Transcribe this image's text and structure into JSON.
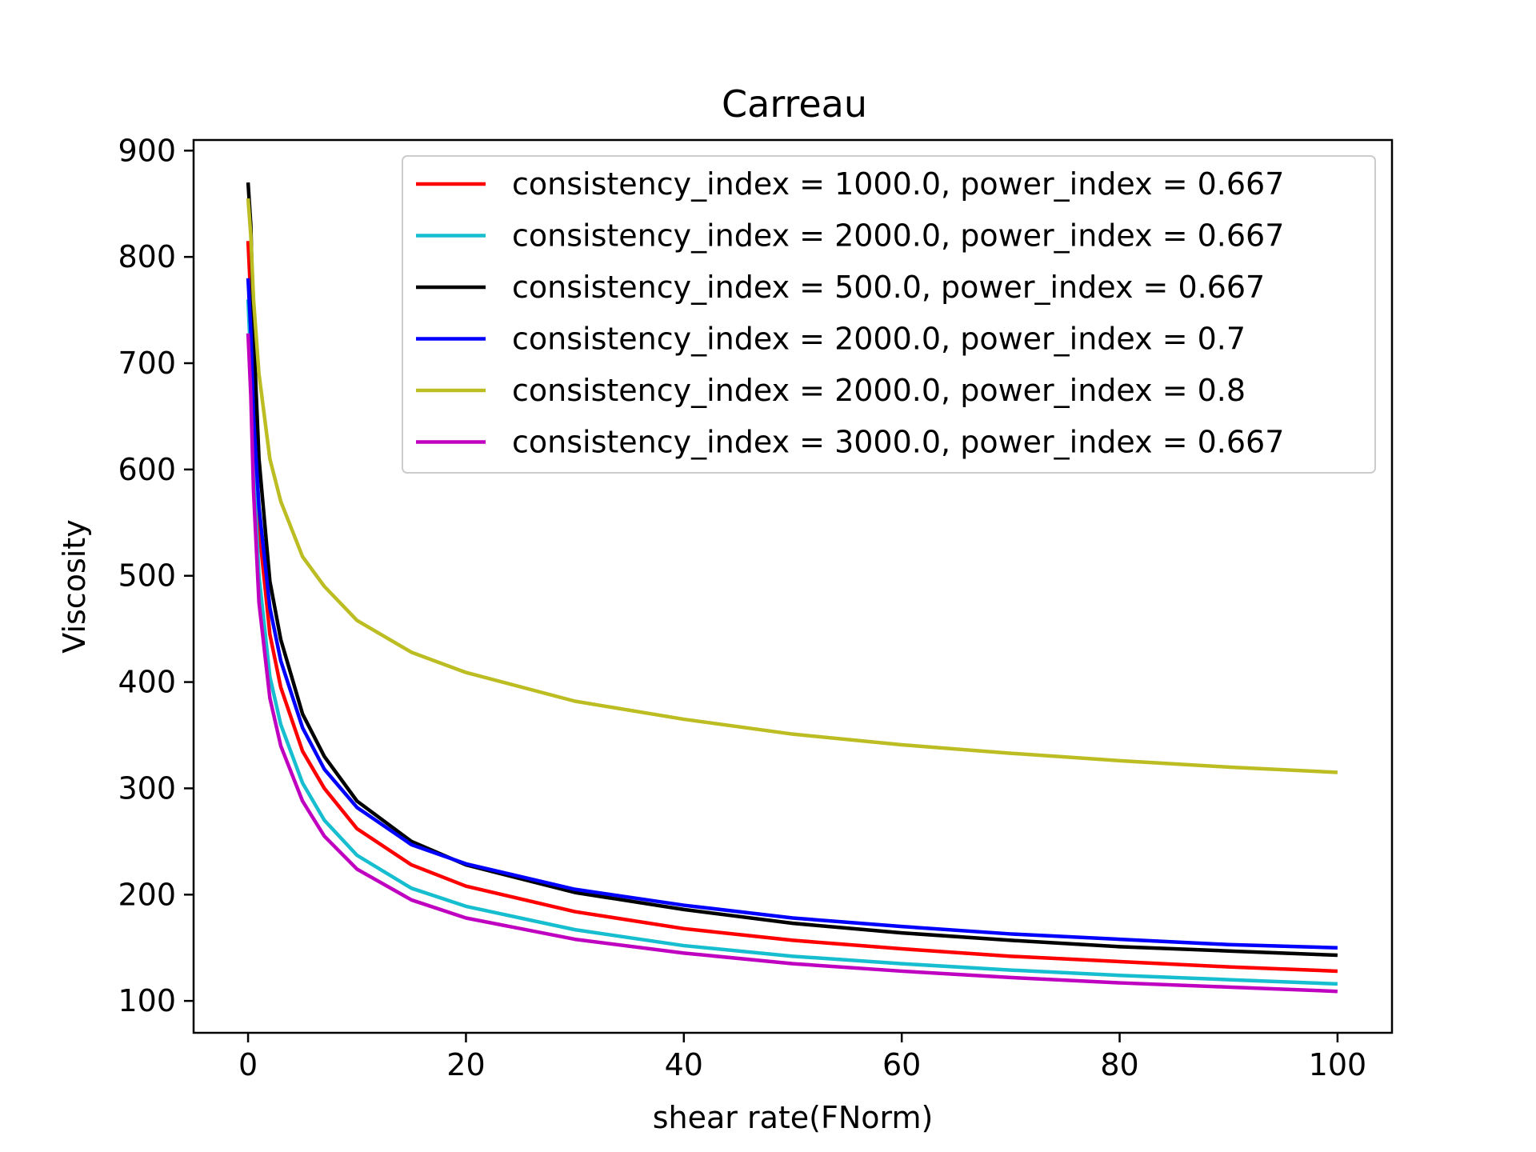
{
  "chart_data": {
    "type": "line",
    "title": "Carreau",
    "xlabel": "shear rate(FNorm)",
    "ylabel": "Viscosity",
    "xlim": [
      -5,
      105
    ],
    "ylim": [
      70,
      910
    ],
    "xticks": [
      0,
      20,
      40,
      60,
      80,
      100
    ],
    "yticks": [
      100,
      200,
      300,
      400,
      500,
      600,
      700,
      800,
      900
    ],
    "grid": false,
    "legend_position": "top-right",
    "x": [
      0,
      0.25,
      0.5,
      1,
      2,
      3,
      5,
      7,
      10,
      15,
      20,
      30,
      40,
      50,
      60,
      70,
      80,
      90,
      100
    ],
    "series": [
      {
        "name": "consistency_index = 1000.0, power_index = 0.667",
        "color": "#ff0000",
        "values": [
          815,
          760,
          660,
          545,
          445,
          395,
          335,
          300,
          262,
          228,
          208,
          184,
          168,
          157,
          149,
          142,
          137,
          132,
          128
        ]
      },
      {
        "name": "consistency_index = 2000.0, power_index = 0.667",
        "color": "#17becf",
        "values": [
          760,
          700,
          600,
          500,
          405,
          360,
          305,
          270,
          237,
          206,
          189,
          167,
          152,
          142,
          135,
          129,
          124,
          120,
          116
        ]
      },
      {
        "name": "consistency_index = 500.0, power_index = 0.667",
        "color": "#000000",
        "values": [
          870,
          830,
          730,
          610,
          495,
          440,
          370,
          330,
          288,
          250,
          228,
          202,
          186,
          173,
          164,
          157,
          151,
          147,
          143
        ]
      },
      {
        "name": "consistency_index = 2000.0, power_index = 0.7",
        "color": "#0000ff",
        "values": [
          780,
          730,
          650,
          565,
          470,
          420,
          357,
          318,
          282,
          247,
          229,
          205,
          190,
          178,
          170,
          163,
          158,
          153,
          150
        ]
      },
      {
        "name": "consistency_index = 2000.0, power_index = 0.8",
        "color": "#bcbd22",
        "values": [
          855,
          820,
          760,
          690,
          610,
          570,
          518,
          490,
          458,
          428,
          409,
          382,
          365,
          351,
          341,
          333,
          326,
          320,
          315
        ]
      },
      {
        "name": "consistency_index = 3000.0, power_index = 0.667",
        "color": "#c000c0",
        "values": [
          728,
          670,
          580,
          475,
          385,
          340,
          288,
          255,
          224,
          195,
          178,
          158,
          145,
          135,
          128,
          122,
          117,
          113,
          109
        ]
      }
    ]
  }
}
